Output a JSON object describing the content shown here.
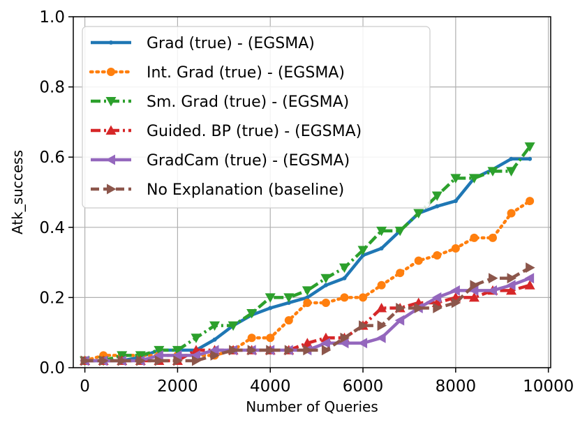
{
  "chart_data": {
    "type": "line",
    "xlabel": "Number of Queries",
    "ylabel": "Atk_success",
    "xlim": [
      -250,
      10050
    ],
    "ylim": [
      0,
      1.0
    ],
    "xticks": [
      0,
      2000,
      4000,
      6000,
      8000,
      10000
    ],
    "xtick_labels": [
      "0",
      "2000",
      "4000",
      "6000",
      "8000",
      "10000"
    ],
    "yticks": [
      0.0,
      0.2,
      0.4,
      0.6,
      0.8,
      1.0
    ],
    "ytick_labels": [
      "0.0",
      "0.2",
      "0.4",
      "0.6",
      "0.8",
      "1.0"
    ],
    "grid": true,
    "legend_position": "top-left",
    "series": [
      {
        "name": "Grad (true) - (EGSMA)",
        "color": "#1f77b4",
        "linestyle": "solid",
        "marker": "point",
        "x": [
          0,
          400,
          800,
          1200,
          1600,
          2000,
          2400,
          2800,
          3200,
          3600,
          4000,
          4400,
          4800,
          5200,
          5600,
          6000,
          6400,
          6800,
          7200,
          7600,
          8000,
          8400,
          8800,
          9200,
          9600
        ],
        "y": [
          0.02,
          0.02,
          0.02,
          0.03,
          0.05,
          0.05,
          0.05,
          0.08,
          0.12,
          0.15,
          0.17,
          0.185,
          0.2,
          0.235,
          0.255,
          0.32,
          0.34,
          0.39,
          0.44,
          0.46,
          0.475,
          0.54,
          0.565,
          0.595,
          0.595
        ]
      },
      {
        "name": "Int. Grad (true) - (EGSMA)",
        "color": "#ff7f0e",
        "linestyle": "dotted",
        "marker": "circle",
        "x": [
          0,
          400,
          800,
          1200,
          1600,
          2000,
          2400,
          2800,
          3200,
          3600,
          4000,
          4400,
          4800,
          5200,
          5600,
          6000,
          6400,
          6800,
          7200,
          7600,
          8000,
          8400,
          8800,
          9200,
          9600
        ],
        "y": [
          0.02,
          0.035,
          0.035,
          0.035,
          0.035,
          0.035,
          0.035,
          0.035,
          0.05,
          0.085,
          0.085,
          0.135,
          0.185,
          0.185,
          0.2,
          0.2,
          0.235,
          0.27,
          0.305,
          0.32,
          0.34,
          0.37,
          0.37,
          0.44,
          0.475
        ]
      },
      {
        "name": "Sm. Grad (true) - (EGSMA)",
        "color": "#2ca02c",
        "linestyle": "dashdot",
        "marker": "triangle-down",
        "x": [
          0,
          400,
          800,
          1200,
          1600,
          2000,
          2400,
          2800,
          3200,
          3600,
          4000,
          4400,
          4800,
          5200,
          5600,
          6000,
          6400,
          6800,
          7200,
          7600,
          8000,
          8400,
          8800,
          9200,
          9600
        ],
        "y": [
          0.02,
          0.02,
          0.035,
          0.035,
          0.05,
          0.05,
          0.085,
          0.12,
          0.12,
          0.155,
          0.2,
          0.2,
          0.22,
          0.255,
          0.285,
          0.335,
          0.39,
          0.39,
          0.44,
          0.49,
          0.54,
          0.54,
          0.56,
          0.56,
          0.63
        ]
      },
      {
        "name": "Guided. BP (true) - (EGSMA)",
        "color": "#d62728",
        "linestyle": "dashdot",
        "marker": "triangle-up",
        "x": [
          0,
          400,
          800,
          1200,
          1600,
          2000,
          2400,
          2800,
          3200,
          3600,
          4000,
          4400,
          4800,
          5200,
          5600,
          6000,
          6400,
          6800,
          7200,
          7600,
          8000,
          8400,
          8800,
          9200,
          9600
        ],
        "y": [
          0.02,
          0.02,
          0.02,
          0.02,
          0.02,
          0.02,
          0.05,
          0.05,
          0.05,
          0.05,
          0.05,
          0.05,
          0.07,
          0.085,
          0.085,
          0.12,
          0.17,
          0.17,
          0.185,
          0.185,
          0.2,
          0.2,
          0.22,
          0.22,
          0.235
        ]
      },
      {
        "name": "GradCam (true) - (EGSMA)",
        "color": "#9467bd",
        "linestyle": "solid",
        "marker": "triangle-left",
        "x": [
          0,
          400,
          800,
          1200,
          1600,
          2000,
          2400,
          2800,
          3200,
          3600,
          4000,
          4400,
          4800,
          5200,
          5600,
          6000,
          6400,
          6800,
          7200,
          7600,
          8000,
          8400,
          8800,
          9200,
          9600
        ],
        "y": [
          0.02,
          0.02,
          0.02,
          0.02,
          0.035,
          0.035,
          0.035,
          0.05,
          0.05,
          0.05,
          0.05,
          0.05,
          0.05,
          0.07,
          0.07,
          0.07,
          0.085,
          0.135,
          0.17,
          0.2,
          0.22,
          0.22,
          0.22,
          0.235,
          0.255
        ]
      },
      {
        "name": "No Explanation (baseline)",
        "color": "#8c564b",
        "linestyle": "dashed",
        "marker": "triangle-right",
        "x": [
          0,
          400,
          800,
          1200,
          1600,
          2000,
          2400,
          2800,
          3200,
          3600,
          4000,
          4400,
          4800,
          5200,
          5600,
          6000,
          6400,
          6800,
          7200,
          7600,
          8000,
          8400,
          8800,
          9200,
          9600
        ],
        "y": [
          0.02,
          0.02,
          0.02,
          0.02,
          0.02,
          0.02,
          0.02,
          0.035,
          0.05,
          0.05,
          0.05,
          0.05,
          0.05,
          0.05,
          0.085,
          0.12,
          0.12,
          0.17,
          0.17,
          0.17,
          0.185,
          0.235,
          0.255,
          0.255,
          0.285
        ]
      }
    ]
  }
}
